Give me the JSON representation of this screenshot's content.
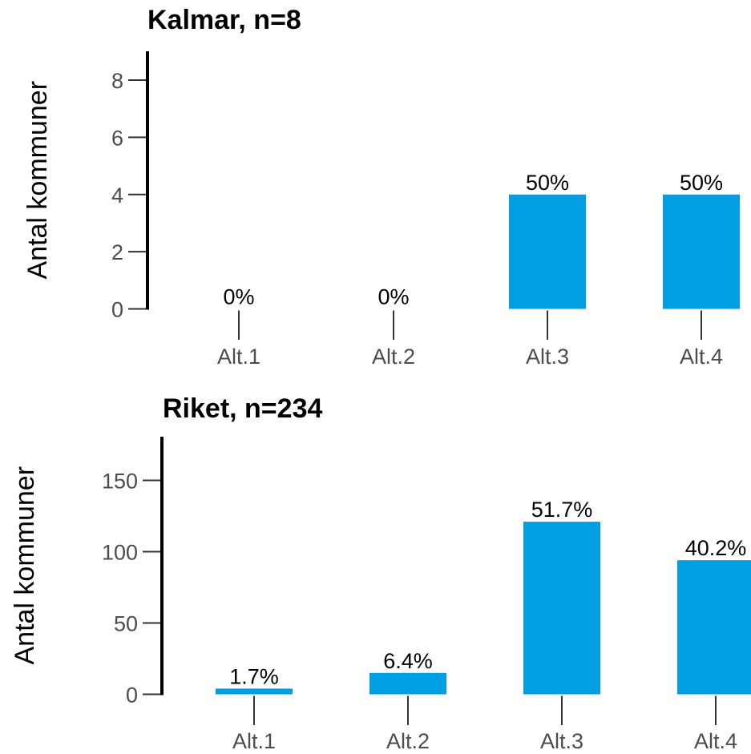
{
  "chart_data": [
    {
      "type": "bar",
      "title": "Kalmar, n=8",
      "ylabel": "Antal kommuner",
      "xlabel": "",
      "categories": [
        "Alt.1",
        "Alt.2",
        "Alt.3",
        "Alt.4"
      ],
      "values": [
        0,
        0,
        4,
        4
      ],
      "labels": [
        "0%",
        "0%",
        "50%",
        "50%"
      ],
      "yticks": [
        0,
        2,
        4,
        6,
        8
      ],
      "ylim": [
        0,
        9
      ],
      "color": "#009fe3",
      "grid": false,
      "legend": "none"
    },
    {
      "type": "bar",
      "title": "Riket, n=234",
      "ylabel": "Antal kommuner",
      "xlabel": "",
      "categories": [
        "Alt.1",
        "Alt.2",
        "Alt.3",
        "Alt.4"
      ],
      "values": [
        4,
        15,
        121,
        94
      ],
      "labels": [
        "1.7%",
        "6.4%",
        "51.7%",
        "40.2%"
      ],
      "yticks": [
        0,
        50,
        100,
        150
      ],
      "ylim": [
        0,
        180
      ],
      "color": "#009fe3",
      "grid": false,
      "legend": "none"
    }
  ]
}
